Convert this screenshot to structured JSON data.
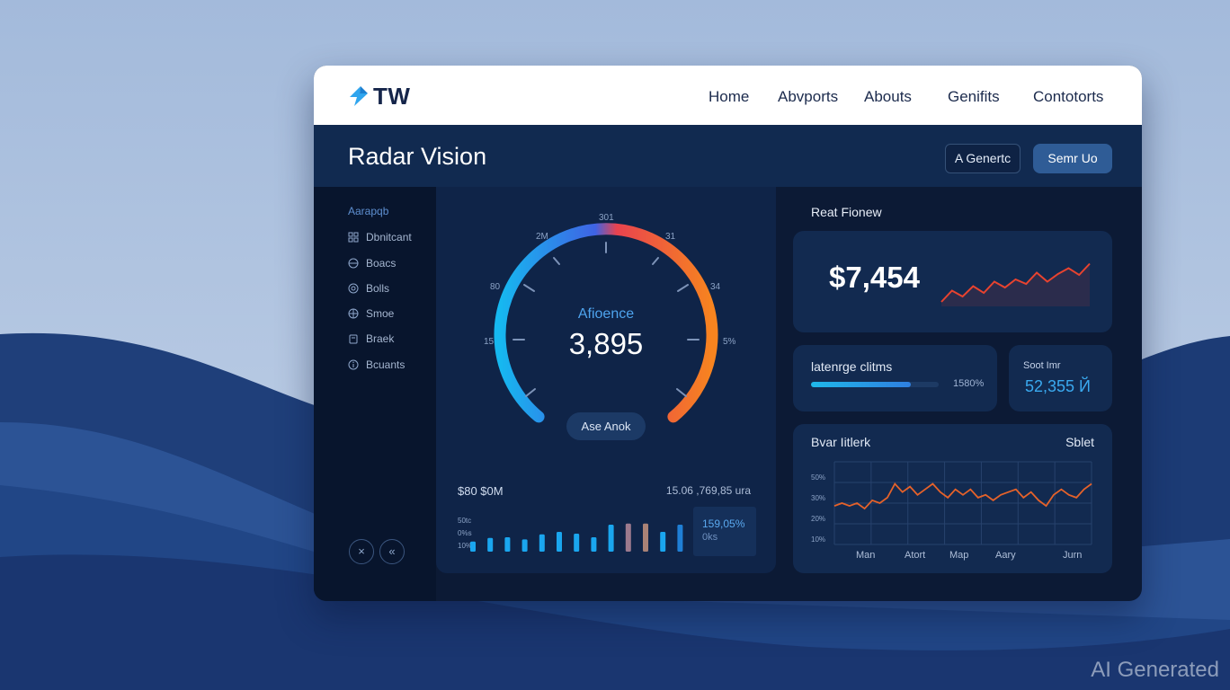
{
  "brand": {
    "logo_text": "TW",
    "accent": "#2fa5ee",
    "logo_icon": "arrow-logo-icon"
  },
  "nav": {
    "items": [
      "Home",
      "Abvports",
      "Abouts",
      "Genifits",
      "Contotorts"
    ]
  },
  "header": {
    "title": "Radar Vision",
    "general_button": "A Genertc",
    "setup_button": "Semr Uo"
  },
  "sidebar": {
    "heading": "Aarapqb",
    "items": [
      {
        "label": "Dbnitcant",
        "icon": "grid-icon"
      },
      {
        "label": "Boacs",
        "icon": "globe-icon"
      },
      {
        "label": "Bolls",
        "icon": "target-icon"
      },
      {
        "label": "Smoe",
        "icon": "crosshair-icon"
      },
      {
        "label": "Braek",
        "icon": "clipboard-icon"
      },
      {
        "label": "Bcuants",
        "icon": "info-icon"
      }
    ],
    "bottom_buttons": [
      {
        "label": "×",
        "icon": "close-icon"
      },
      {
        "label": "«",
        "icon": "back-icon"
      }
    ]
  },
  "gauge": {
    "label": "Afioence",
    "value": "3,895",
    "button": "Ase Anok",
    "ticks": [
      "15",
      "80",
      "2M",
      "301",
      "31",
      "34",
      "5%"
    ],
    "colors": {
      "start": "#16b8f0",
      "mid": "#e8434f",
      "end": "#f7841f"
    }
  },
  "stats": {
    "left": "$80 $0M",
    "right": "15.06 ,769,85 ura",
    "bar_axis": [
      "50tc",
      "0%s",
      "10%"
    ],
    "summary_value": "159,05%",
    "summary_unit": "0ks"
  },
  "revenue": {
    "heading": "Reat Fionew",
    "value": "$7,454"
  },
  "progress": {
    "label": "latenrge clitms",
    "percent": "1580%",
    "fill_fraction": 0.78
  },
  "stat": {
    "label": "Soot Imr",
    "value": "52,355 Й"
  },
  "line_chart_card": {
    "title": "Bvar Iitlerk",
    "select": "Sblet",
    "y_labels": [
      "50%",
      "30%",
      "20%",
      "10%"
    ],
    "x_labels": [
      "Man",
      "Atort",
      "Map",
      "Aary",
      "Jurn"
    ]
  },
  "chart_data": [
    {
      "type": "bar",
      "values": [
        0.28,
        0.38,
        0.4,
        0.34,
        0.48,
        0.55,
        0.5,
        0.4,
        0.75,
        0.78,
        0.78,
        0.55,
        0.75
      ],
      "colors": [
        "#1aa6ef",
        "#1aa6ef",
        "#1aa6ef",
        "#1aa6ef",
        "#1aa6ef",
        "#1aa6ef",
        "#1aa6ef",
        "#1aa6ef",
        "#1aa6ef",
        "#9c7a8e",
        "#a98276",
        "#1aa6ef",
        "#1f7fd5"
      ],
      "ylim": [
        0,
        1
      ]
    },
    {
      "type": "line",
      "series": [
        {
          "values": [
            0.1,
            0.35,
            0.22,
            0.45,
            0.3,
            0.55,
            0.42,
            0.6,
            0.5,
            0.75,
            0.55,
            0.72,
            0.85,
            0.7,
            0.95
          ]
        }
      ],
      "color": "#e8432f"
    },
    {
      "type": "line",
      "series": [
        {
          "values": [
            29,
            30,
            29,
            30,
            28,
            31,
            30,
            32,
            37,
            34,
            36,
            33,
            35,
            37,
            34,
            32,
            35,
            33,
            35,
            32,
            33,
            31,
            33,
            34,
            35,
            32,
            34,
            31,
            29,
            33,
            35,
            33,
            32,
            35,
            37
          ]
        }
      ],
      "x_labels": [
        "Man",
        "Atort",
        "Map",
        "Aary",
        "Jurn"
      ],
      "y_labels": [
        "50%",
        "30%",
        "20%",
        "10%"
      ],
      "ylim": [
        15,
        45
      ],
      "color": "#e5622a"
    }
  ]
}
